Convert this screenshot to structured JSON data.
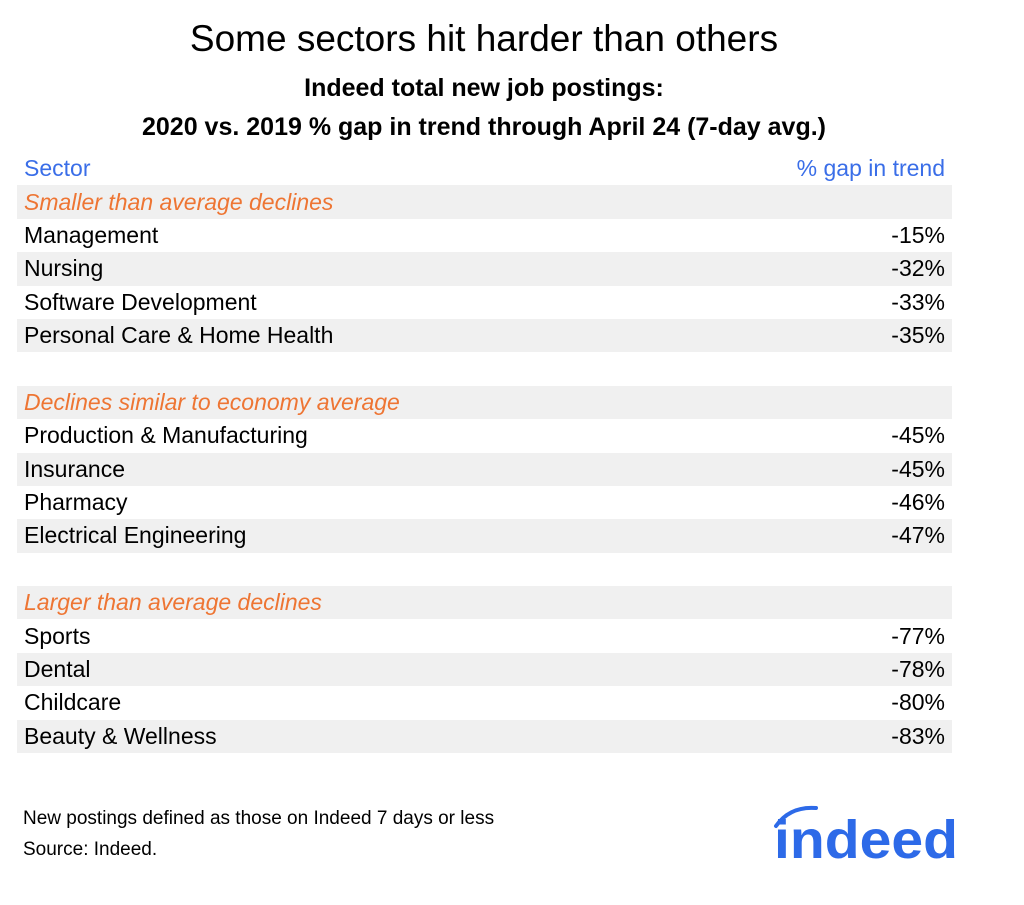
{
  "title": "Some sectors hit harder than others",
  "subtitle1": "Indeed total new job postings:",
  "subtitle2": "2020 vs. 2019 % gap in trend through April 24 (7-day avg.)",
  "chart_data": {
    "type": "table",
    "columns": [
      "Sector",
      "% gap in trend"
    ],
    "groups": [
      {
        "label": "Smaller than average declines",
        "rows": [
          [
            "Management",
            "-15%"
          ],
          [
            "Nursing",
            "-32%"
          ],
          [
            "Software Development",
            "-33%"
          ],
          [
            "Personal Care & Home Health",
            "-35%"
          ]
        ]
      },
      {
        "label": "Declines similar to economy average",
        "rows": [
          [
            "Production & Manufacturing",
            "-45%"
          ],
          [
            "Insurance",
            "-45%"
          ],
          [
            "Pharmacy",
            "-46%"
          ],
          [
            "Electrical Engineering",
            "-47%"
          ]
        ]
      },
      {
        "label": "Larger than average declines",
        "rows": [
          [
            "Sports",
            "-77%"
          ],
          [
            "Dental",
            "-78%"
          ],
          [
            "Childcare",
            "-80%"
          ],
          [
            "Beauty & Wellness",
            "-83%"
          ]
        ]
      }
    ]
  },
  "notes": [
    "New postings defined as those on Indeed 7 days or less",
    "Source: Indeed."
  ],
  "logo": "indeed",
  "colors": {
    "header": "#3a6ee8",
    "group": "#ee7533",
    "stripe": "#f0f0f0",
    "logo": "#2d6ae8"
  }
}
